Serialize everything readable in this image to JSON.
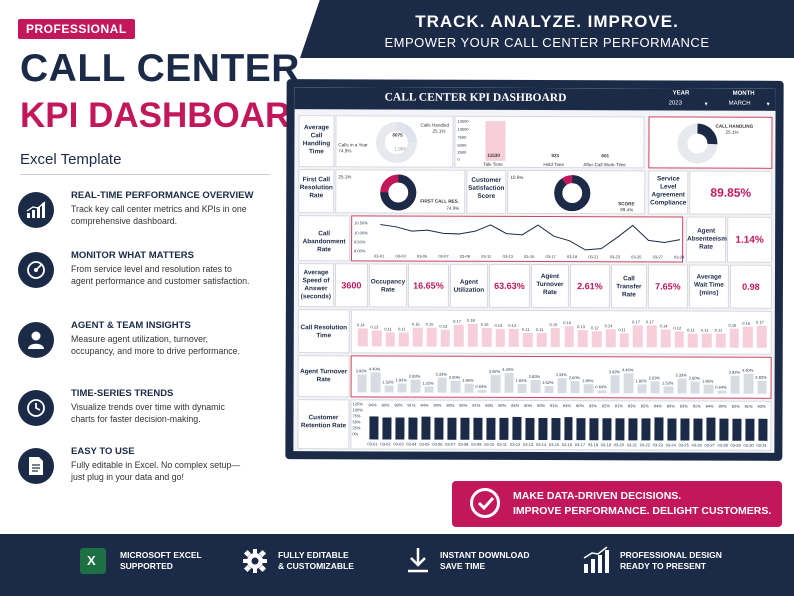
{
  "banner": {
    "line1": "TRACK. ANALYZE. IMPROVE.",
    "line2": "EMPOWER YOUR CALL CENTER PERFORMANCE"
  },
  "header": {
    "badge": "PROFESSIONAL",
    "title1": "CALL CENTER",
    "title2": "KPI DASHBOARD",
    "subtitle": "Excel Template"
  },
  "features": [
    {
      "icon": "bar-chart-icon",
      "title": "REAL-TIME PERFORMANCE OVERVIEW",
      "desc": "Track key call center metrics and KPIs in one comprehensive dashboard."
    },
    {
      "icon": "target-gauge-icon",
      "title": "MONITOR WHAT MATTERS",
      "desc": "From service level and resolution rates to agent performance and customer satisfaction."
    },
    {
      "icon": "user-icon",
      "title": "AGENT & TEAM INSIGHTS",
      "desc": "Measure agent utilization, turnover, occupancy, and more to drive performance."
    },
    {
      "icon": "clock-icon",
      "title": "TIME-SERIES TRENDS",
      "desc": "Visualize trends over time with dynamic charts for faster decision-making."
    },
    {
      "icon": "document-icon",
      "title": "EASY TO USE",
      "desc": "Fully editable in Excel. No complex setup—just plug in your data and go!"
    }
  ],
  "dashboard": {
    "title": "CALL CENTER KPI DASHBOARD",
    "year_label": "YEAR",
    "year_value": "2023",
    "month_label": "MONTH",
    "month_value": "MARCH",
    "avg_handling": {
      "label": "Average Call Handling Time",
      "calls_in_year": "Calls in a Year",
      "pct1": "74.9%",
      "v1": "6075",
      "calls_handled": "Calls Handled",
      "pct2": "25.1%",
      "v2": "1,988"
    },
    "time_bars": {
      "axis": [
        "12500",
        "10000",
        "7500",
        "5000",
        "2500",
        "0"
      ],
      "values": [
        "11530",
        "923",
        "601"
      ],
      "labels": [
        "Talk Time",
        "Hold Time",
        "After-Call Work-Time"
      ]
    },
    "call_handling": {
      "label": "CALL HANDLING",
      "pct": "25.1%"
    },
    "fcr": {
      "label": "First Call Resolution Rate",
      "pct_top": "25.1%",
      "name": "FIRST CALL RES.",
      "pct": "74.9%"
    },
    "csat": {
      "label": "Customer Satisfaction Score",
      "pct_top": "10.6%",
      "name": "SCORE",
      "pct": "89.4%"
    },
    "sla": {
      "label": "Service Level Agreement Compliance",
      "value": "89.85%"
    },
    "abandon": {
      "label": "Call Abandonment Rate",
      "ylabels": [
        "10.50%",
        "10.00%",
        "9.50%",
        "9.00%"
      ],
      "xlabels": [
        "03-01",
        "03-03",
        "03-05",
        "03-07",
        "03-09",
        "03-11",
        "03-13",
        "03-15",
        "03-17",
        "03-19",
        "03-21",
        "03-23",
        "03-25",
        "03-27",
        "03-29"
      ],
      "points": [
        "10.53%",
        "10.35%",
        "10.00%",
        "10.08%",
        "9.82%",
        "9.78%",
        "10.00%",
        "10.53%",
        "9.82%",
        "9.72%",
        "10.53%",
        "9.62%",
        "9.25%",
        "8.51%",
        "8.61%",
        "9.52%",
        "10.53%",
        "9.30%",
        "9.14%",
        "9.38%"
      ]
    },
    "absenteeism": {
      "label": "Agent Absenteeism Rate",
      "value": "1.14%"
    },
    "row_speed": {
      "asa_label": "Average Speed of Answer (seconds)",
      "asa": "3600",
      "occ_label": "Occupancy Rate",
      "occ": "16.65%",
      "util_label": "Agent Utilization",
      "util": "63.63%",
      "turn_label": "Agent Turnover Rate",
      "turn": "2.61%",
      "xfer_label": "Call Transfer Rate",
      "xfer": "7.65%",
      "wait_label": "Average Wait Time (mins)",
      "wait": "0.98"
    },
    "resolution": {
      "label": "Call Resolution Time",
      "values": [
        "0.14",
        "0.12",
        "0.11",
        "0.11",
        "0.15",
        "0.15",
        "0.13",
        "0.17",
        "0.18",
        "0.15",
        "0.14",
        "0.14",
        "0.11",
        "0.11",
        "0.15",
        "0.16",
        "0.13",
        "0.12",
        "0.14",
        "0.11",
        "0.17",
        "0.17",
        "0.14",
        "0.12",
        "0.11",
        "0.11",
        "0.11",
        "0.15",
        "0.16",
        "0.17"
      ]
    },
    "turnover": {
      "label": "Agent Turnover Rate",
      "values": [
        "3.92%",
        "4.40%",
        "1.52%",
        "1.92%",
        "2.83%",
        "1.22%",
        "3.33%",
        "2.60%",
        "1.95%",
        "0.64%",
        "3.92%",
        "4.40%",
        "1.92%",
        "2.83%",
        "1.52%",
        "3.33%",
        "2.60%",
        "1.95%",
        "0.64%",
        "3.92%",
        "4.40%",
        "1.92%",
        "2.63%",
        "1.52%",
        "3.33%",
        "2.60%",
        "1.95%",
        "0.64%",
        "3.92%",
        "4.40%",
        "2.83%"
      ]
    },
    "retention": {
      "label": "Customer Retention Rate",
      "axis": [
        "125%",
        "100%",
        "75%",
        "50%",
        "25%",
        "0%"
      ],
      "values": [
        "94%",
        "90%",
        "93%",
        "91%",
        "94%",
        "90%",
        "93%",
        "92%",
        "91%",
        "93%",
        "92%",
        "94%",
        "90%",
        "92%",
        "91%",
        "94%",
        "90%",
        "93%",
        "92%",
        "91%",
        "93%",
        "92%",
        "94%",
        "90%",
        "93%",
        "91%",
        "94%",
        "90%",
        "92%",
        "91%",
        "93%"
      ],
      "dates": [
        "03-01",
        "03-02",
        "03-03",
        "03-04",
        "03-05",
        "03-06",
        "03-07",
        "03-08",
        "03-09",
        "03-10",
        "03-11",
        "03-12",
        "03-13",
        "03-14",
        "03-15",
        "03-16",
        "03-17",
        "03-18",
        "03-19",
        "03-20",
        "03-21",
        "03-22",
        "03-23",
        "03-24",
        "03-25",
        "03-26",
        "03-27",
        "03-28",
        "03-29",
        "03-30",
        "03-31"
      ]
    }
  },
  "callout": {
    "line1": "MAKE DATA-DRIVEN DECISIONS.",
    "line2": "IMPROVE PERFORMANCE. DELIGHT CUSTOMERS."
  },
  "footer": [
    {
      "icon": "excel-icon",
      "l1": "MICROSOFT EXCEL",
      "l2": "SUPPORTED"
    },
    {
      "icon": "gear-icon",
      "l1": "FULLY EDITABLE",
      "l2": "& CUSTOMIZABLE"
    },
    {
      "icon": "download-icon",
      "l1": "INSTANT DOWNLOAD",
      "l2": "SAVE TIME"
    },
    {
      "icon": "growth-chart-icon",
      "l1": "PROFESSIONAL DESIGN",
      "l2": "READY TO PRESENT"
    }
  ],
  "colors": {
    "navy": "#1b2a47",
    "pink": "#c2185b",
    "excel_green": "#1d7044"
  }
}
